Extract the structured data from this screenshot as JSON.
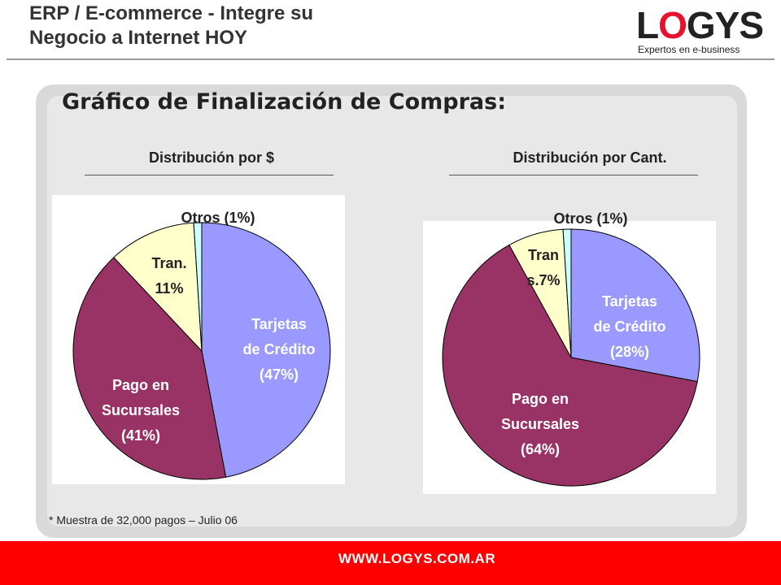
{
  "header": {
    "title_line1": "ERP / E-commerce - Integre su",
    "title_line2": "Negocio a Internet HOY"
  },
  "logo": {
    "word_pre": "L",
    "word_o": "O",
    "word_post": "GYS",
    "tagline": "Expertos en e-business"
  },
  "slide": {
    "title": "Gráfico de Finalización de Compras:",
    "footnote": "* Muestra de 32,000 pagos  – Julio 06"
  },
  "footer": {
    "url": "WWW.LOGYS.COM.AR"
  },
  "colors": {
    "tarjetas": "#9999ff",
    "pago": "#993366",
    "tran": "#ffffcc",
    "otros": "#ccffff",
    "accent": "#ff0000"
  },
  "chart_data": [
    {
      "type": "pie",
      "title": "Distribución por $",
      "slices": [
        {
          "label": "Tarjetas de Crédito (47%)",
          "value": 47,
          "color": "#9999ff",
          "text_color": "#ffffff",
          "lines": [
            "Tarjetas",
            "de Crédito",
            "(47%)"
          ]
        },
        {
          "label": "Pago en Sucursales (41%)",
          "value": 41,
          "color": "#993366",
          "text_color": "#ffffff",
          "lines": [
            "Pago en",
            "Sucursales",
            "(41%)"
          ]
        },
        {
          "label": "Tran. 11%",
          "value": 11,
          "color": "#ffffcc",
          "text_color": "#222222",
          "lines": [
            "Tran.",
            "11%"
          ]
        },
        {
          "label": "Otros (1%)",
          "value": 1,
          "color": "#ccffff",
          "text_color": "#222222",
          "lines": [
            "Otros (1%)"
          ]
        }
      ]
    },
    {
      "type": "pie",
      "title": "Distribución por Cant.",
      "slices": [
        {
          "label": "Tarjetas de Crédito (28%)",
          "value": 28,
          "color": "#9999ff",
          "text_color": "#ffffff",
          "lines": [
            "Tarjetas",
            "de Crédito",
            "(28%)"
          ]
        },
        {
          "label": "Pago en Sucursales (64%)",
          "value": 64,
          "color": "#993366",
          "text_color": "#ffffff",
          "lines": [
            "Pago en",
            "Sucursales",
            "(64%)"
          ]
        },
        {
          "label": "Trans.7%",
          "value": 7,
          "color": "#ffffcc",
          "text_color": "#222222",
          "lines": [
            "Tran",
            "s.7%"
          ]
        },
        {
          "label": "Otros (1%)",
          "value": 1,
          "color": "#ccffff",
          "text_color": "#222222",
          "lines": [
            "Otros (1%)"
          ]
        }
      ]
    }
  ]
}
